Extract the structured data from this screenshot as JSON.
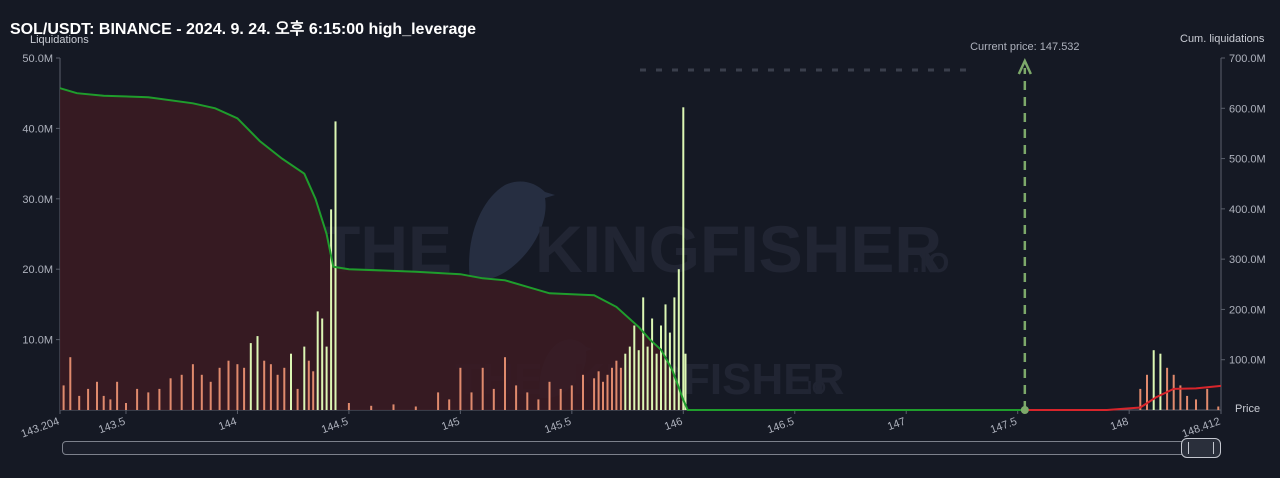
{
  "title": "SOL/USDT: BINANCE - 2024. 9. 24. 오후 6:15:00 high_leverage",
  "watermark": {
    "main": "THE",
    "main2": "KINGFISHER",
    "suffix": ".IO"
  },
  "chart_data": {
    "type": "bar",
    "left_axis": {
      "label": "Liquidations",
      "ticks": [
        "50.0M",
        "40.0M",
        "30.0M",
        "20.0M",
        "10.0M"
      ],
      "ylim": [
        0,
        50
      ]
    },
    "right_axis": {
      "label": "Cum. liquidations",
      "ticks": [
        "700.0M",
        "600.0M",
        "500.0M",
        "400.0M",
        "300.0M",
        "200.0M",
        "100.0M"
      ],
      "ylim": [
        0,
        700
      ]
    },
    "x_axis": {
      "label": "Price",
      "xlim": [
        143.204,
        148.412
      ],
      "ticks": [
        "143.204",
        "143.5",
        "144",
        "144.5",
        "145",
        "145.5",
        "146",
        "146.5",
        "147",
        "147.5",
        "148",
        "148.412"
      ],
      "tick_values": [
        143.204,
        143.5,
        144,
        144.5,
        145,
        145.5,
        146,
        146.5,
        147,
        147.5,
        148,
        148.412
      ]
    },
    "current_price": {
      "label": "Current price: 147.532",
      "value": 147.532
    },
    "colors": {
      "long_cum": "#1f9d2c",
      "short_cum": "#d8252b",
      "long_fill": "#3a1b22",
      "bar_high": "#dcf7b4",
      "bar_low": "#e08a6d",
      "current_price_line": "#7da96a"
    },
    "long_cumulative": {
      "x": [
        143.204,
        143.28,
        143.4,
        143.6,
        143.8,
        143.9,
        144.0,
        144.1,
        144.2,
        144.3,
        144.35,
        144.4,
        144.43,
        144.5,
        144.8,
        145.0,
        145.1,
        145.2,
        145.3,
        145.4,
        145.5,
        145.6,
        145.7,
        145.8,
        145.85,
        145.9,
        145.95,
        146.0,
        146.02,
        147.532
      ],
      "y": [
        640,
        630,
        625,
        622,
        610,
        600,
        580,
        535,
        500,
        470,
        420,
        350,
        285,
        280,
        275,
        270,
        262,
        258,
        245,
        232,
        230,
        228,
        205,
        165,
        140,
        120,
        80,
        20,
        0,
        0
      ]
    },
    "short_cumulative": {
      "x": [
        147.532,
        147.9,
        148.05,
        148.12,
        148.2,
        148.3,
        148.412
      ],
      "y": [
        0,
        0,
        5,
        25,
        42,
        43,
        48
      ]
    },
    "bars": {
      "x": [
        143.22,
        143.25,
        143.29,
        143.33,
        143.37,
        143.4,
        143.43,
        143.46,
        143.5,
        143.55,
        143.6,
        143.65,
        143.7,
        143.75,
        143.8,
        143.84,
        143.88,
        143.92,
        143.96,
        144.0,
        144.03,
        144.06,
        144.09,
        144.12,
        144.15,
        144.18,
        144.21,
        144.24,
        144.27,
        144.3,
        144.32,
        144.34,
        144.36,
        144.38,
        144.4,
        144.42,
        144.44,
        144.5,
        144.6,
        144.7,
        144.8,
        144.9,
        144.95,
        145.0,
        145.05,
        145.1,
        145.15,
        145.2,
        145.25,
        145.3,
        145.35,
        145.4,
        145.45,
        145.5,
        145.55,
        145.6,
        145.62,
        145.64,
        145.66,
        145.68,
        145.7,
        145.72,
        145.74,
        145.76,
        145.78,
        145.8,
        145.82,
        145.84,
        145.86,
        145.88,
        145.9,
        145.92,
        145.94,
        145.96,
        145.98,
        146.0,
        146.01,
        148.05,
        148.08,
        148.11,
        148.14,
        148.17,
        148.2,
        148.23,
        148.26,
        148.3,
        148.35,
        148.4
      ],
      "values": [
        3.5,
        7.5,
        2.0,
        3.0,
        4.0,
        2.0,
        1.5,
        4.0,
        1.0,
        3.0,
        2.5,
        3.0,
        4.5,
        5.0,
        6.5,
        5.0,
        4.0,
        6.0,
        7.0,
        6.5,
        6.0,
        9.5,
        10.5,
        7.0,
        6.5,
        5.0,
        6.0,
        8.0,
        3.0,
        9.0,
        7.0,
        5.5,
        14.0,
        13.0,
        9.0,
        28.5,
        41.0,
        1.0,
        0.6,
        0.8,
        0.5,
        2.5,
        1.5,
        6.0,
        2.5,
        6.0,
        3.0,
        7.5,
        3.5,
        2.5,
        1.5,
        4.0,
        3.0,
        3.5,
        5.0,
        4.5,
        5.5,
        4.0,
        5.0,
        6.0,
        7.0,
        6.0,
        8.0,
        9.0,
        12.0,
        8.5,
        16.0,
        9.0,
        13.0,
        8.0,
        12.0,
        15.0,
        11.0,
        16.0,
        20.0,
        43.0,
        8.0,
        3.0,
        5.0,
        8.5,
        8.0,
        6.0,
        5.0,
        3.5,
        2.0,
        1.5,
        3.0,
        0.5
      ]
    }
  }
}
